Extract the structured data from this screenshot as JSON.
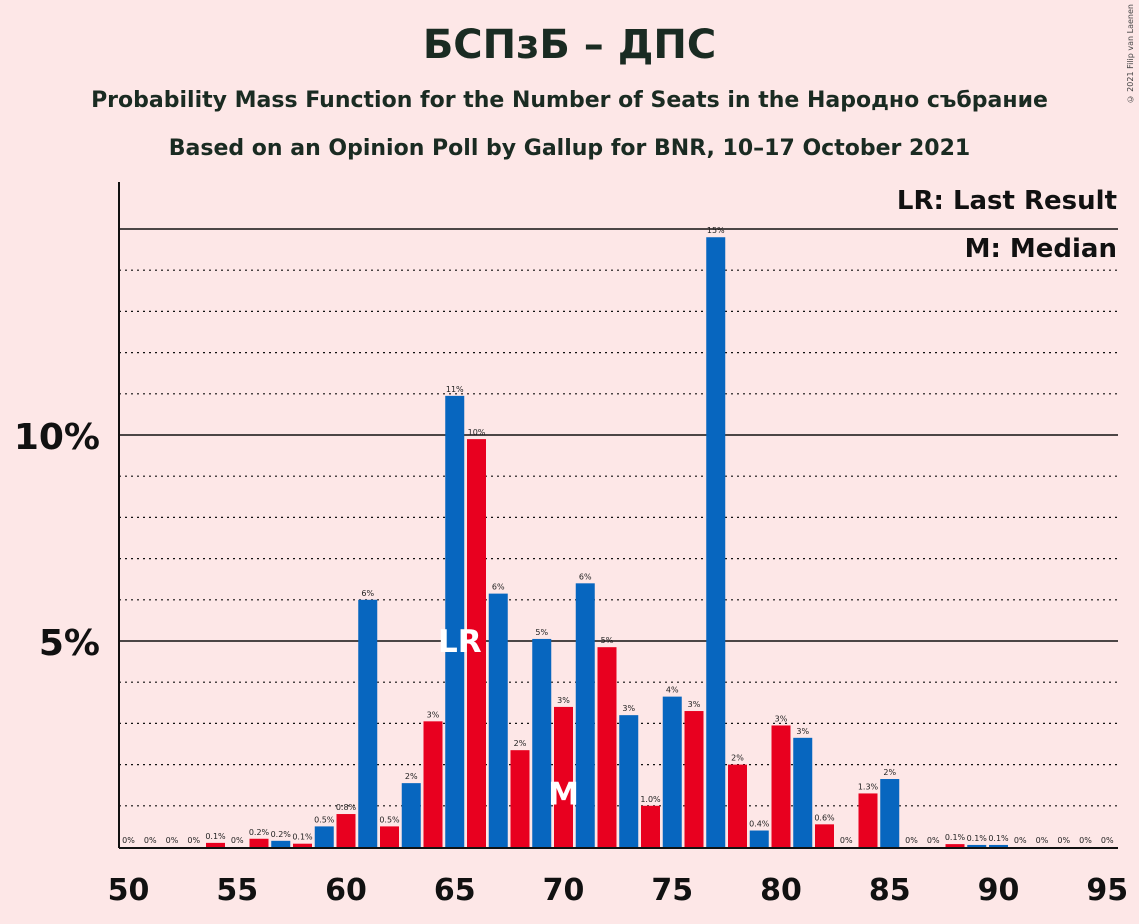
{
  "header": {
    "title": "БСПзБ – ДПС",
    "subtitle": "Probability Mass Function for the Number of Seats in the Народно събрание",
    "caption": "Based on an Opinion Poll by Gallup for BNR, 10–17 October 2021",
    "copyright": "© 2021 Filip van Laenen"
  },
  "legend": {
    "lr": "LR: Last Result",
    "m": "M: Median"
  },
  "colors": {
    "blue": "#0766bf",
    "red": "#e8001f",
    "background": "#fde7e7"
  },
  "chart_data": {
    "type": "bar",
    "x_ticks": [
      "50",
      "55",
      "60",
      "65",
      "70",
      "75",
      "80",
      "85",
      "90",
      "95"
    ],
    "y_ticks": [
      {
        "value": 5,
        "label": "5%"
      },
      {
        "value": 10,
        "label": "10%"
      }
    ],
    "xlim": [
      50,
      95
    ],
    "ylim": [
      0,
      16
    ],
    "grid": "dotted every 1%, solid at 5% and 10%",
    "legend_position": "top-right",
    "bars": [
      {
        "x": 50,
        "value": 0.0,
        "label": "0%",
        "color": "blue"
      },
      {
        "x": 51,
        "value": 0.0,
        "label": "0%",
        "color": "red"
      },
      {
        "x": 52,
        "value": 0.0,
        "label": "0%",
        "color": "blue"
      },
      {
        "x": 53,
        "value": 0.0,
        "label": "0%",
        "color": "red"
      },
      {
        "x": 54,
        "value": 0.1,
        "label": "0.1%",
        "color": "red"
      },
      {
        "x": 55,
        "value": 0.0,
        "label": "0%",
        "color": "blue"
      },
      {
        "x": 56,
        "value": 0.2,
        "label": "0.2%",
        "color": "red"
      },
      {
        "x": 57,
        "value": 0.15,
        "label": "0.2%",
        "color": "blue"
      },
      {
        "x": 58,
        "value": 0.08,
        "label": "0.1%",
        "color": "red"
      },
      {
        "x": 59,
        "value": 0.5,
        "label": "0.5%",
        "color": "blue"
      },
      {
        "x": 60,
        "value": 0.8,
        "label": "0.8%",
        "color": "red"
      },
      {
        "x": 61,
        "value": 6.0,
        "label": "6%",
        "color": "blue"
      },
      {
        "x": 62,
        "value": 0.5,
        "label": "0.5%",
        "color": "red"
      },
      {
        "x": 63,
        "value": 1.55,
        "label": "2%",
        "color": "blue"
      },
      {
        "x": 64,
        "value": 3.05,
        "label": "3%",
        "color": "red"
      },
      {
        "x": 65,
        "value": 10.95,
        "label": "11%",
        "color": "blue"
      },
      {
        "x": 66,
        "value": 9.9,
        "label": "10%",
        "color": "red"
      },
      {
        "x": 67,
        "value": 6.15,
        "label": "6%",
        "color": "blue"
      },
      {
        "x": 68,
        "value": 2.35,
        "label": "2%",
        "color": "red"
      },
      {
        "x": 69,
        "value": 5.05,
        "label": "5%",
        "color": "blue"
      },
      {
        "x": 70,
        "value": 3.4,
        "label": "3%",
        "color": "red"
      },
      {
        "x": 71,
        "value": 6.4,
        "label": "6%",
        "color": "blue"
      },
      {
        "x": 72,
        "value": 4.85,
        "label": "5%",
        "color": "red"
      },
      {
        "x": 73,
        "value": 3.2,
        "label": "3%",
        "color": "blue"
      },
      {
        "x": 74,
        "value": 1.0,
        "label": "1.0%",
        "color": "red"
      },
      {
        "x": 75,
        "value": 3.65,
        "label": "4%",
        "color": "blue"
      },
      {
        "x": 76,
        "value": 3.3,
        "label": "3%",
        "color": "red"
      },
      {
        "x": 77,
        "value": 14.8,
        "label": "15%",
        "color": "blue"
      },
      {
        "x": 78,
        "value": 2.0,
        "label": "2%",
        "color": "red"
      },
      {
        "x": 79,
        "value": 0.4,
        "label": "0.4%",
        "color": "blue"
      },
      {
        "x": 80,
        "value": 2.95,
        "label": "3%",
        "color": "red"
      },
      {
        "x": 81,
        "value": 2.65,
        "label": "3%",
        "color": "blue"
      },
      {
        "x": 82,
        "value": 0.55,
        "label": "0.6%",
        "color": "red"
      },
      {
        "x": 83,
        "value": 0.0,
        "label": "0%",
        "color": "blue"
      },
      {
        "x": 84,
        "value": 1.3,
        "label": "1.3%",
        "color": "red"
      },
      {
        "x": 85,
        "value": 1.65,
        "label": "2%",
        "color": "blue"
      },
      {
        "x": 86,
        "value": 0.0,
        "label": "0%",
        "color": "blue"
      },
      {
        "x": 87,
        "value": 0.0,
        "label": "0%",
        "color": "red"
      },
      {
        "x": 88,
        "value": 0.07,
        "label": "0.1%",
        "color": "red"
      },
      {
        "x": 89,
        "value": 0.05,
        "label": "0.1%",
        "color": "blue"
      },
      {
        "x": 90,
        "value": 0.05,
        "label": "0.1%",
        "color": "blue"
      },
      {
        "x": 91,
        "value": 0.0,
        "label": "0%",
        "color": "blue"
      },
      {
        "x": 92,
        "value": 0.0,
        "label": "0%",
        "color": "red"
      },
      {
        "x": 93,
        "value": 0.0,
        "label": "0%",
        "color": "blue"
      },
      {
        "x": 94,
        "value": 0.0,
        "label": "0%",
        "color": "red"
      },
      {
        "x": 95,
        "value": 0.0,
        "label": "0%",
        "color": "blue"
      }
    ],
    "markers": [
      {
        "text": "LR",
        "x": 65
      },
      {
        "text": "M",
        "x": 70
      }
    ]
  }
}
